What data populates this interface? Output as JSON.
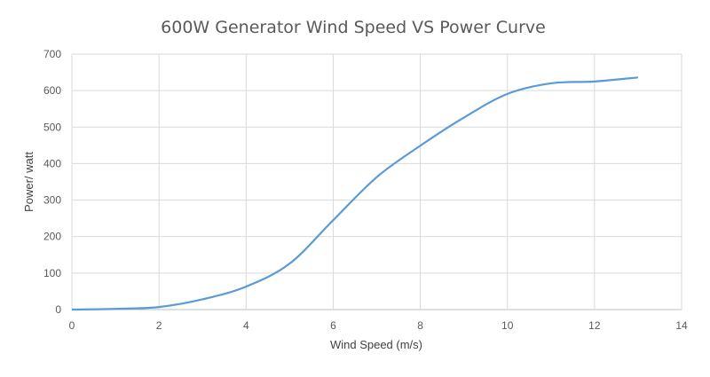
{
  "chart_data": {
    "type": "line",
    "title": "600W Generator Wind Speed VS Power Curve",
    "xlabel": "Wind Speed (m/s)",
    "ylabel": "Power/ watt",
    "xlim": [
      0,
      14
    ],
    "ylim": [
      0,
      700
    ],
    "xticks": [
      0,
      2,
      4,
      6,
      8,
      10,
      12,
      14
    ],
    "yticks": [
      0,
      100,
      200,
      300,
      400,
      500,
      600,
      700
    ],
    "grid": true,
    "legend": "none",
    "series": [
      {
        "name": "Power",
        "color": "#5B9BD5",
        "x": [
          0,
          1,
          2,
          3,
          4,
          5,
          6,
          7,
          8,
          9,
          10,
          11,
          12,
          13
        ],
        "y": [
          0,
          2,
          7,
          28,
          63,
          126,
          245,
          363,
          449,
          526,
          591,
          620,
          625,
          636
        ]
      }
    ]
  }
}
